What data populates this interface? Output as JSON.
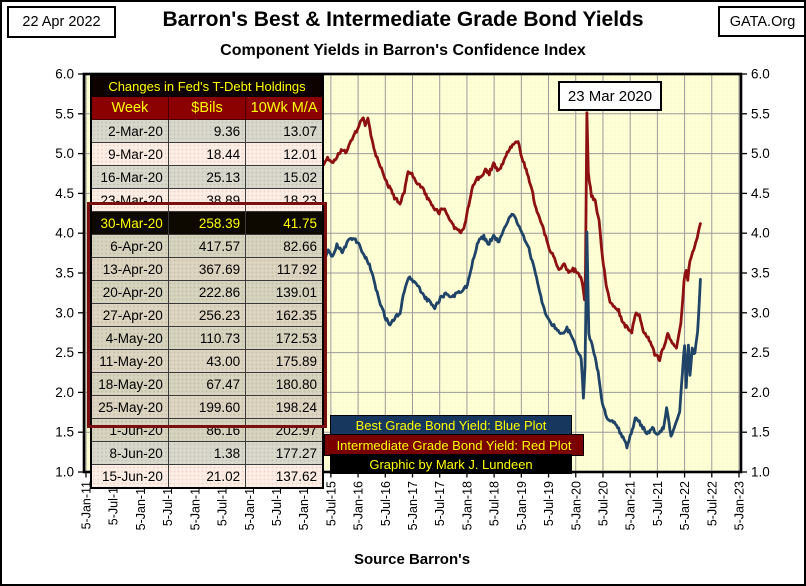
{
  "frame": {
    "date_label": "22 Apr 2022",
    "brand_label": "GATA.Org",
    "title": "Barron's Best & Intermediate Grade Bond Yields",
    "subtitle": "Component Yields in Barron's Confidence Index",
    "source": "Source Barron's"
  },
  "annotation": {
    "label": "23 Mar 2020"
  },
  "legend": [
    {
      "label": "Best Grade Bond Yield: Blue Plot",
      "bg": "#17375e"
    },
    {
      "label": "Intermediate Grade Bond Yield: Red Plot",
      "bg": "#7a0000"
    },
    {
      "label": "Graphic by Mark J. Lundeen",
      "bg": "#000000"
    }
  ],
  "fed_table": {
    "title": "Changes in Fed's T-Debt Holdings",
    "columns": [
      "Week",
      "$Bils",
      "10Wk M/A"
    ],
    "rows": [
      [
        "2-Mar-20",
        "9.36",
        "13.07"
      ],
      [
        "9-Mar-20",
        "18.44",
        "12.01"
      ],
      [
        "16-Mar-20",
        "25.13",
        "15.02"
      ],
      [
        "23-Mar-20",
        "38.89",
        "18.23"
      ],
      [
        "30-Mar-20",
        "258.39",
        "41.75"
      ],
      [
        "6-Apr-20",
        "417.57",
        "82.66"
      ],
      [
        "13-Apr-20",
        "367.69",
        "117.92"
      ],
      [
        "20-Apr-20",
        "222.86",
        "139.01"
      ],
      [
        "27-Apr-20",
        "256.23",
        "162.35"
      ],
      [
        "4-May-20",
        "110.73",
        "172.53"
      ],
      [
        "11-May-20",
        "43.00",
        "175.89"
      ],
      [
        "18-May-20",
        "67.47",
        "180.80"
      ],
      [
        "25-May-20",
        "199.60",
        "198.24"
      ],
      [
        "1-Jun-20",
        "86.16",
        "202.97"
      ],
      [
        "8-Jun-20",
        "1.38",
        "177.27"
      ],
      [
        "15-Jun-20",
        "21.02",
        "137.62"
      ]
    ],
    "highlight_index": 4,
    "box_start_index": 4,
    "box_end_index": 13
  },
  "chart_data": {
    "type": "line",
    "title": "Barron's Best & Intermediate Grade Bond Yields",
    "subtitle": "Component Yields in Barron's Confidence Index",
    "plot_bg": "#ffffd6",
    "grid": true,
    "grid_color": "#9a9a9a",
    "ylim": [
      1.0,
      6.0
    ],
    "y_tick_labels": [
      "6.0",
      "5.5",
      "5.0",
      "4.5",
      "4.0",
      "3.5",
      "3.0",
      "2.5",
      "2.0",
      "1.5",
      "1.0"
    ],
    "x_range_years": [
      2011.01,
      2023.01
    ],
    "x_tick_labels": [
      "5-Jan-11",
      "5-Jul-11",
      "5-Jan-12",
      "5-Jul-12",
      "5-Jan-13",
      "5-Jul-13",
      "5-Jan-14",
      "5-Jul-14",
      "5-Jan-15",
      "5-Jul-15",
      "5-Jan-16",
      "5-Jul-16",
      "5-Jan-17",
      "5-Jul-17",
      "5-Jan-18",
      "5-Jul-18",
      "5-Jan-19",
      "5-Jul-19",
      "5-Jan-20",
      "5-Jul-20",
      "5-Jan-21",
      "5-Jul-21",
      "5-Jan-22",
      "5-Jul-22",
      "5-Jan-23"
    ],
    "annotations": [
      {
        "label": "23 Mar 2020",
        "x": 2020.22,
        "y": 5.5
      }
    ],
    "series": [
      {
        "id": "intermediate-grade-line",
        "name": "Intermediate Grade Bond Yield",
        "color": "#8e1111",
        "points": [
          [
            2015.2,
            4.72
          ],
          [
            2015.35,
            4.85
          ],
          [
            2015.45,
            4.95
          ],
          [
            2015.55,
            4.88
          ],
          [
            2015.7,
            5.05
          ],
          [
            2015.8,
            5.02
          ],
          [
            2015.92,
            5.22
          ],
          [
            2016.02,
            5.32
          ],
          [
            2016.09,
            5.46
          ],
          [
            2016.14,
            5.36
          ],
          [
            2016.19,
            5.43
          ],
          [
            2016.3,
            5.05
          ],
          [
            2016.42,
            4.85
          ],
          [
            2016.55,
            4.62
          ],
          [
            2016.68,
            4.45
          ],
          [
            2016.78,
            4.38
          ],
          [
            2016.86,
            4.52
          ],
          [
            2016.93,
            4.78
          ],
          [
            2017.0,
            4.75
          ],
          [
            2017.08,
            4.62
          ],
          [
            2017.18,
            4.58
          ],
          [
            2017.3,
            4.42
          ],
          [
            2017.42,
            4.3
          ],
          [
            2017.5,
            4.26
          ],
          [
            2017.58,
            4.32
          ],
          [
            2017.7,
            4.15
          ],
          [
            2017.8,
            4.05
          ],
          [
            2017.9,
            4.02
          ],
          [
            2017.97,
            4.1
          ],
          [
            2018.1,
            4.55
          ],
          [
            2018.18,
            4.68
          ],
          [
            2018.28,
            4.7
          ],
          [
            2018.35,
            4.8
          ],
          [
            2018.42,
            4.75
          ],
          [
            2018.5,
            4.87
          ],
          [
            2018.57,
            4.79
          ],
          [
            2018.65,
            4.85
          ],
          [
            2018.75,
            5.0
          ],
          [
            2018.85,
            5.12
          ],
          [
            2018.95,
            5.15
          ],
          [
            2019.02,
            4.95
          ],
          [
            2019.1,
            4.8
          ],
          [
            2019.2,
            4.55
          ],
          [
            2019.3,
            4.25
          ],
          [
            2019.4,
            4.1
          ],
          [
            2019.5,
            3.85
          ],
          [
            2019.6,
            3.7
          ],
          [
            2019.7,
            3.55
          ],
          [
            2019.8,
            3.6
          ],
          [
            2019.88,
            3.52
          ],
          [
            2019.96,
            3.55
          ],
          [
            2020.05,
            3.5
          ],
          [
            2020.12,
            3.42
          ],
          [
            2020.17,
            3.18
          ],
          [
            2020.19,
            3.55
          ],
          [
            2020.215,
            5.5
          ],
          [
            2020.24,
            4.75
          ],
          [
            2020.3,
            4.48
          ],
          [
            2020.37,
            4.4
          ],
          [
            2020.44,
            4.15
          ],
          [
            2020.5,
            3.7
          ],
          [
            2020.57,
            3.35
          ],
          [
            2020.64,
            3.15
          ],
          [
            2020.72,
            3.06
          ],
          [
            2020.8,
            3.02
          ],
          [
            2020.88,
            2.88
          ],
          [
            2020.96,
            2.8
          ],
          [
            2021.04,
            2.76
          ],
          [
            2021.12,
            3.02
          ],
          [
            2021.18,
            2.96
          ],
          [
            2021.27,
            2.74
          ],
          [
            2021.36,
            2.66
          ],
          [
            2021.46,
            2.48
          ],
          [
            2021.55,
            2.42
          ],
          [
            2021.64,
            2.6
          ],
          [
            2021.7,
            2.72
          ],
          [
            2021.78,
            2.62
          ],
          [
            2021.86,
            2.54
          ],
          [
            2021.94,
            2.85
          ],
          [
            2022.0,
            3.4
          ],
          [
            2022.04,
            3.55
          ],
          [
            2022.07,
            3.42
          ],
          [
            2022.11,
            3.66
          ],
          [
            2022.16,
            3.75
          ],
          [
            2022.21,
            3.88
          ],
          [
            2022.26,
            4.0
          ],
          [
            2022.3,
            4.12
          ]
        ]
      },
      {
        "id": "best-grade-line",
        "name": "Best Grade Bond Yield",
        "color": "#1f4467",
        "points": [
          [
            2015.2,
            3.6
          ],
          [
            2015.3,
            3.7
          ],
          [
            2015.38,
            3.62
          ],
          [
            2015.46,
            3.8
          ],
          [
            2015.54,
            3.7
          ],
          [
            2015.62,
            3.85
          ],
          [
            2015.72,
            3.76
          ],
          [
            2015.82,
            3.9
          ],
          [
            2015.92,
            3.94
          ],
          [
            2016.02,
            3.86
          ],
          [
            2016.12,
            3.72
          ],
          [
            2016.22,
            3.6
          ],
          [
            2016.32,
            3.35
          ],
          [
            2016.42,
            3.12
          ],
          [
            2016.52,
            2.92
          ],
          [
            2016.6,
            2.86
          ],
          [
            2016.68,
            2.94
          ],
          [
            2016.78,
            3.0
          ],
          [
            2016.86,
            3.28
          ],
          [
            2016.94,
            3.46
          ],
          [
            2017.02,
            3.4
          ],
          [
            2017.12,
            3.32
          ],
          [
            2017.22,
            3.2
          ],
          [
            2017.32,
            3.14
          ],
          [
            2017.42,
            3.06
          ],
          [
            2017.52,
            3.18
          ],
          [
            2017.62,
            3.24
          ],
          [
            2017.72,
            3.18
          ],
          [
            2017.82,
            3.24
          ],
          [
            2017.92,
            3.28
          ],
          [
            2018.02,
            3.35
          ],
          [
            2018.12,
            3.65
          ],
          [
            2018.22,
            3.9
          ],
          [
            2018.32,
            3.96
          ],
          [
            2018.4,
            3.86
          ],
          [
            2018.5,
            3.96
          ],
          [
            2018.6,
            3.9
          ],
          [
            2018.7,
            4.06
          ],
          [
            2018.8,
            4.2
          ],
          [
            2018.87,
            4.24
          ],
          [
            2018.95,
            4.1
          ],
          [
            2019.05,
            3.95
          ],
          [
            2019.15,
            3.8
          ],
          [
            2019.25,
            3.55
          ],
          [
            2019.35,
            3.25
          ],
          [
            2019.45,
            3.0
          ],
          [
            2019.55,
            2.88
          ],
          [
            2019.65,
            2.8
          ],
          [
            2019.75,
            2.74
          ],
          [
            2019.85,
            2.8
          ],
          [
            2019.95,
            2.7
          ],
          [
            2020.05,
            2.5
          ],
          [
            2020.11,
            2.42
          ],
          [
            2020.15,
            1.95
          ],
          [
            2020.18,
            2.3
          ],
          [
            2020.215,
            4.0
          ],
          [
            2020.25,
            2.72
          ],
          [
            2020.33,
            2.55
          ],
          [
            2020.42,
            2.25
          ],
          [
            2020.5,
            1.85
          ],
          [
            2020.58,
            1.68
          ],
          [
            2020.68,
            1.64
          ],
          [
            2020.76,
            1.58
          ],
          [
            2020.86,
            1.46
          ],
          [
            2020.95,
            1.32
          ],
          [
            2021.03,
            1.5
          ],
          [
            2021.12,
            1.7
          ],
          [
            2021.22,
            1.58
          ],
          [
            2021.32,
            1.48
          ],
          [
            2021.42,
            1.54
          ],
          [
            2021.52,
            1.47
          ],
          [
            2021.62,
            1.55
          ],
          [
            2021.68,
            1.8
          ],
          [
            2021.76,
            1.44
          ],
          [
            2021.84,
            1.58
          ],
          [
            2021.92,
            1.74
          ],
          [
            2021.97,
            2.25
          ],
          [
            2022.01,
            2.6
          ],
          [
            2022.04,
            2.08
          ],
          [
            2022.08,
            2.58
          ],
          [
            2022.11,
            2.22
          ],
          [
            2022.15,
            2.55
          ],
          [
            2022.2,
            2.48
          ],
          [
            2022.25,
            2.78
          ],
          [
            2022.3,
            3.42
          ]
        ]
      }
    ]
  }
}
